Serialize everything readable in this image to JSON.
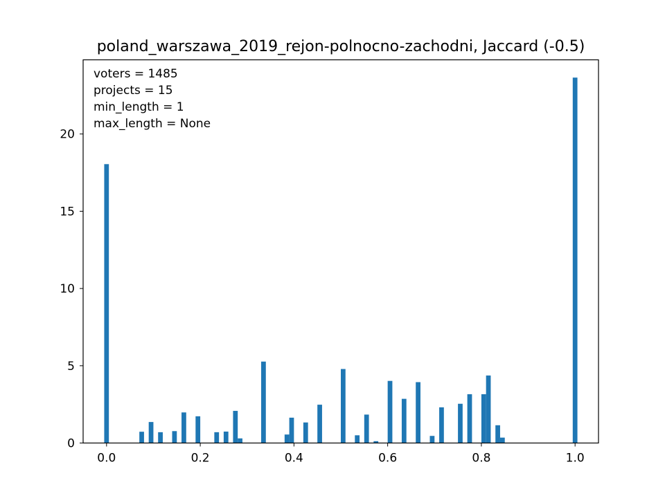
{
  "chart_data": {
    "type": "bar",
    "title": "poland_warszawa_2019_rejon-polnocno-zachodni, Jaccard (-0.5)",
    "xlabel": "",
    "ylabel": "",
    "xlim": [
      -0.05,
      1.05
    ],
    "ylim": [
      0,
      24.8
    ],
    "xticks": [
      0.0,
      0.2,
      0.4,
      0.6,
      0.8,
      1.0
    ],
    "xtick_labels": [
      "0.0",
      "0.2",
      "0.4",
      "0.6",
      "0.8",
      "1.0"
    ],
    "yticks": [
      0,
      5,
      10,
      15,
      20
    ],
    "ytick_labels": [
      "0",
      "5",
      "10",
      "15",
      "20"
    ],
    "bar_width": 0.01,
    "bar_color": "#1f77b4",
    "grid": false,
    "annotations": [
      "voters = 1485",
      "projects = 15",
      "min_length = 1",
      "max_length = None"
    ],
    "bars": [
      {
        "x": 0.0,
        "value": 18.05
      },
      {
        "x": 0.075,
        "value": 0.73
      },
      {
        "x": 0.095,
        "value": 1.36
      },
      {
        "x": 0.115,
        "value": 0.7
      },
      {
        "x": 0.145,
        "value": 0.77
      },
      {
        "x": 0.165,
        "value": 1.98
      },
      {
        "x": 0.195,
        "value": 1.73
      },
      {
        "x": 0.235,
        "value": 0.7
      },
      {
        "x": 0.255,
        "value": 0.74
      },
      {
        "x": 0.275,
        "value": 2.08
      },
      {
        "x": 0.285,
        "value": 0.3
      },
      {
        "x": 0.335,
        "value": 5.27
      },
      {
        "x": 0.385,
        "value": 0.55
      },
      {
        "x": 0.395,
        "value": 1.64
      },
      {
        "x": 0.425,
        "value": 1.33
      },
      {
        "x": 0.455,
        "value": 2.48
      },
      {
        "x": 0.505,
        "value": 4.79
      },
      {
        "x": 0.535,
        "value": 0.5
      },
      {
        "x": 0.555,
        "value": 1.84
      },
      {
        "x": 0.575,
        "value": 0.12
      },
      {
        "x": 0.605,
        "value": 4.02
      },
      {
        "x": 0.635,
        "value": 2.86
      },
      {
        "x": 0.665,
        "value": 3.94
      },
      {
        "x": 0.695,
        "value": 0.46
      },
      {
        "x": 0.715,
        "value": 2.31
      },
      {
        "x": 0.755,
        "value": 2.54
      },
      {
        "x": 0.775,
        "value": 3.16
      },
      {
        "x": 0.805,
        "value": 3.16
      },
      {
        "x": 0.815,
        "value": 4.37
      },
      {
        "x": 0.835,
        "value": 1.15
      },
      {
        "x": 0.845,
        "value": 0.35
      },
      {
        "x": 1.0,
        "value": 23.65
      }
    ]
  }
}
